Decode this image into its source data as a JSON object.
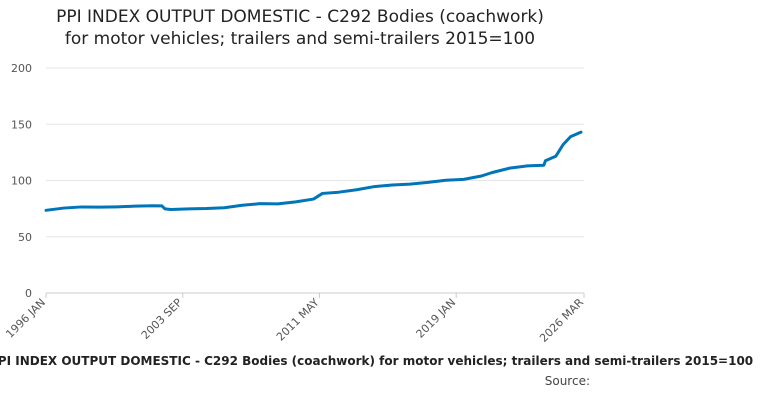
{
  "chart_data": {
    "type": "line",
    "title": "PPI INDEX OUTPUT DOMESTIC - C292 Bodies (coachwork) for motor vehicles; trailers and semi-trailers 2015=100",
    "title_lines": [
      "PPI INDEX OUTPUT DOMESTIC - C292 Bodies (coachwork)",
      "for motor vehicles; trailers and semi-trailers 2015=100"
    ],
    "xlabel": "",
    "ylabel": "",
    "ylim": [
      0,
      200
    ],
    "yticks": [
      0,
      50,
      100,
      150,
      200
    ],
    "x_range": [
      "1996-01",
      "2026-03"
    ],
    "xticks": [
      {
        "date": "1996-01",
        "label": "1996 JAN"
      },
      {
        "date": "2003-09",
        "label": "2003 SEP"
      },
      {
        "date": "2011-05",
        "label": "2011 MAY"
      },
      {
        "date": "2019-01",
        "label": "2019 JAN"
      },
      {
        "date": "2026-03",
        "label": "2026 MAR"
      }
    ],
    "grid": true,
    "series": [
      {
        "name": "PPI INDEX OUTPUT DOMESTIC - C292 Bodies (coachwork) for motor vehicles; trailers and semi-trailers 2015=100",
        "color": "#0075b8",
        "points": [
          [
            "1996-01",
            73.5
          ],
          [
            "1997-01",
            75.5
          ],
          [
            "1998-01",
            76.5
          ],
          [
            "1999-01",
            76.3
          ],
          [
            "2000-01",
            76.6
          ],
          [
            "2001-01",
            77.2
          ],
          [
            "2002-01",
            77.6
          ],
          [
            "2002-07",
            77.4
          ],
          [
            "2002-09",
            74.8
          ],
          [
            "2003-01",
            74.2
          ],
          [
            "2004-01",
            74.8
          ],
          [
            "2005-01",
            75.1
          ],
          [
            "2006-01",
            75.8
          ],
          [
            "2007-01",
            78.0
          ],
          [
            "2008-01",
            79.4
          ],
          [
            "2009-01",
            79.2
          ],
          [
            "2010-01",
            81.0
          ],
          [
            "2011-01",
            83.5
          ],
          [
            "2011-07",
            88.5
          ],
          [
            "2012-06",
            89.6
          ],
          [
            "2013-06",
            91.8
          ],
          [
            "2014-06",
            94.6
          ],
          [
            "2015-06",
            96.0
          ],
          [
            "2016-06",
            96.8
          ],
          [
            "2017-06",
            98.3
          ],
          [
            "2018-06",
            100.2
          ],
          [
            "2019-06",
            101.0
          ],
          [
            "2020-06",
            104.0
          ],
          [
            "2021-01",
            107.0
          ],
          [
            "2022-01",
            111.0
          ],
          [
            "2023-01",
            113.0
          ],
          [
            "2023-12",
            113.6
          ],
          [
            "2024-01",
            117.5
          ],
          [
            "2024-08",
            121.5
          ],
          [
            "2025-01",
            132.0
          ],
          [
            "2025-06",
            139.0
          ],
          [
            "2026-01",
            143.0
          ]
        ]
      }
    ],
    "source_label": "Source:"
  }
}
